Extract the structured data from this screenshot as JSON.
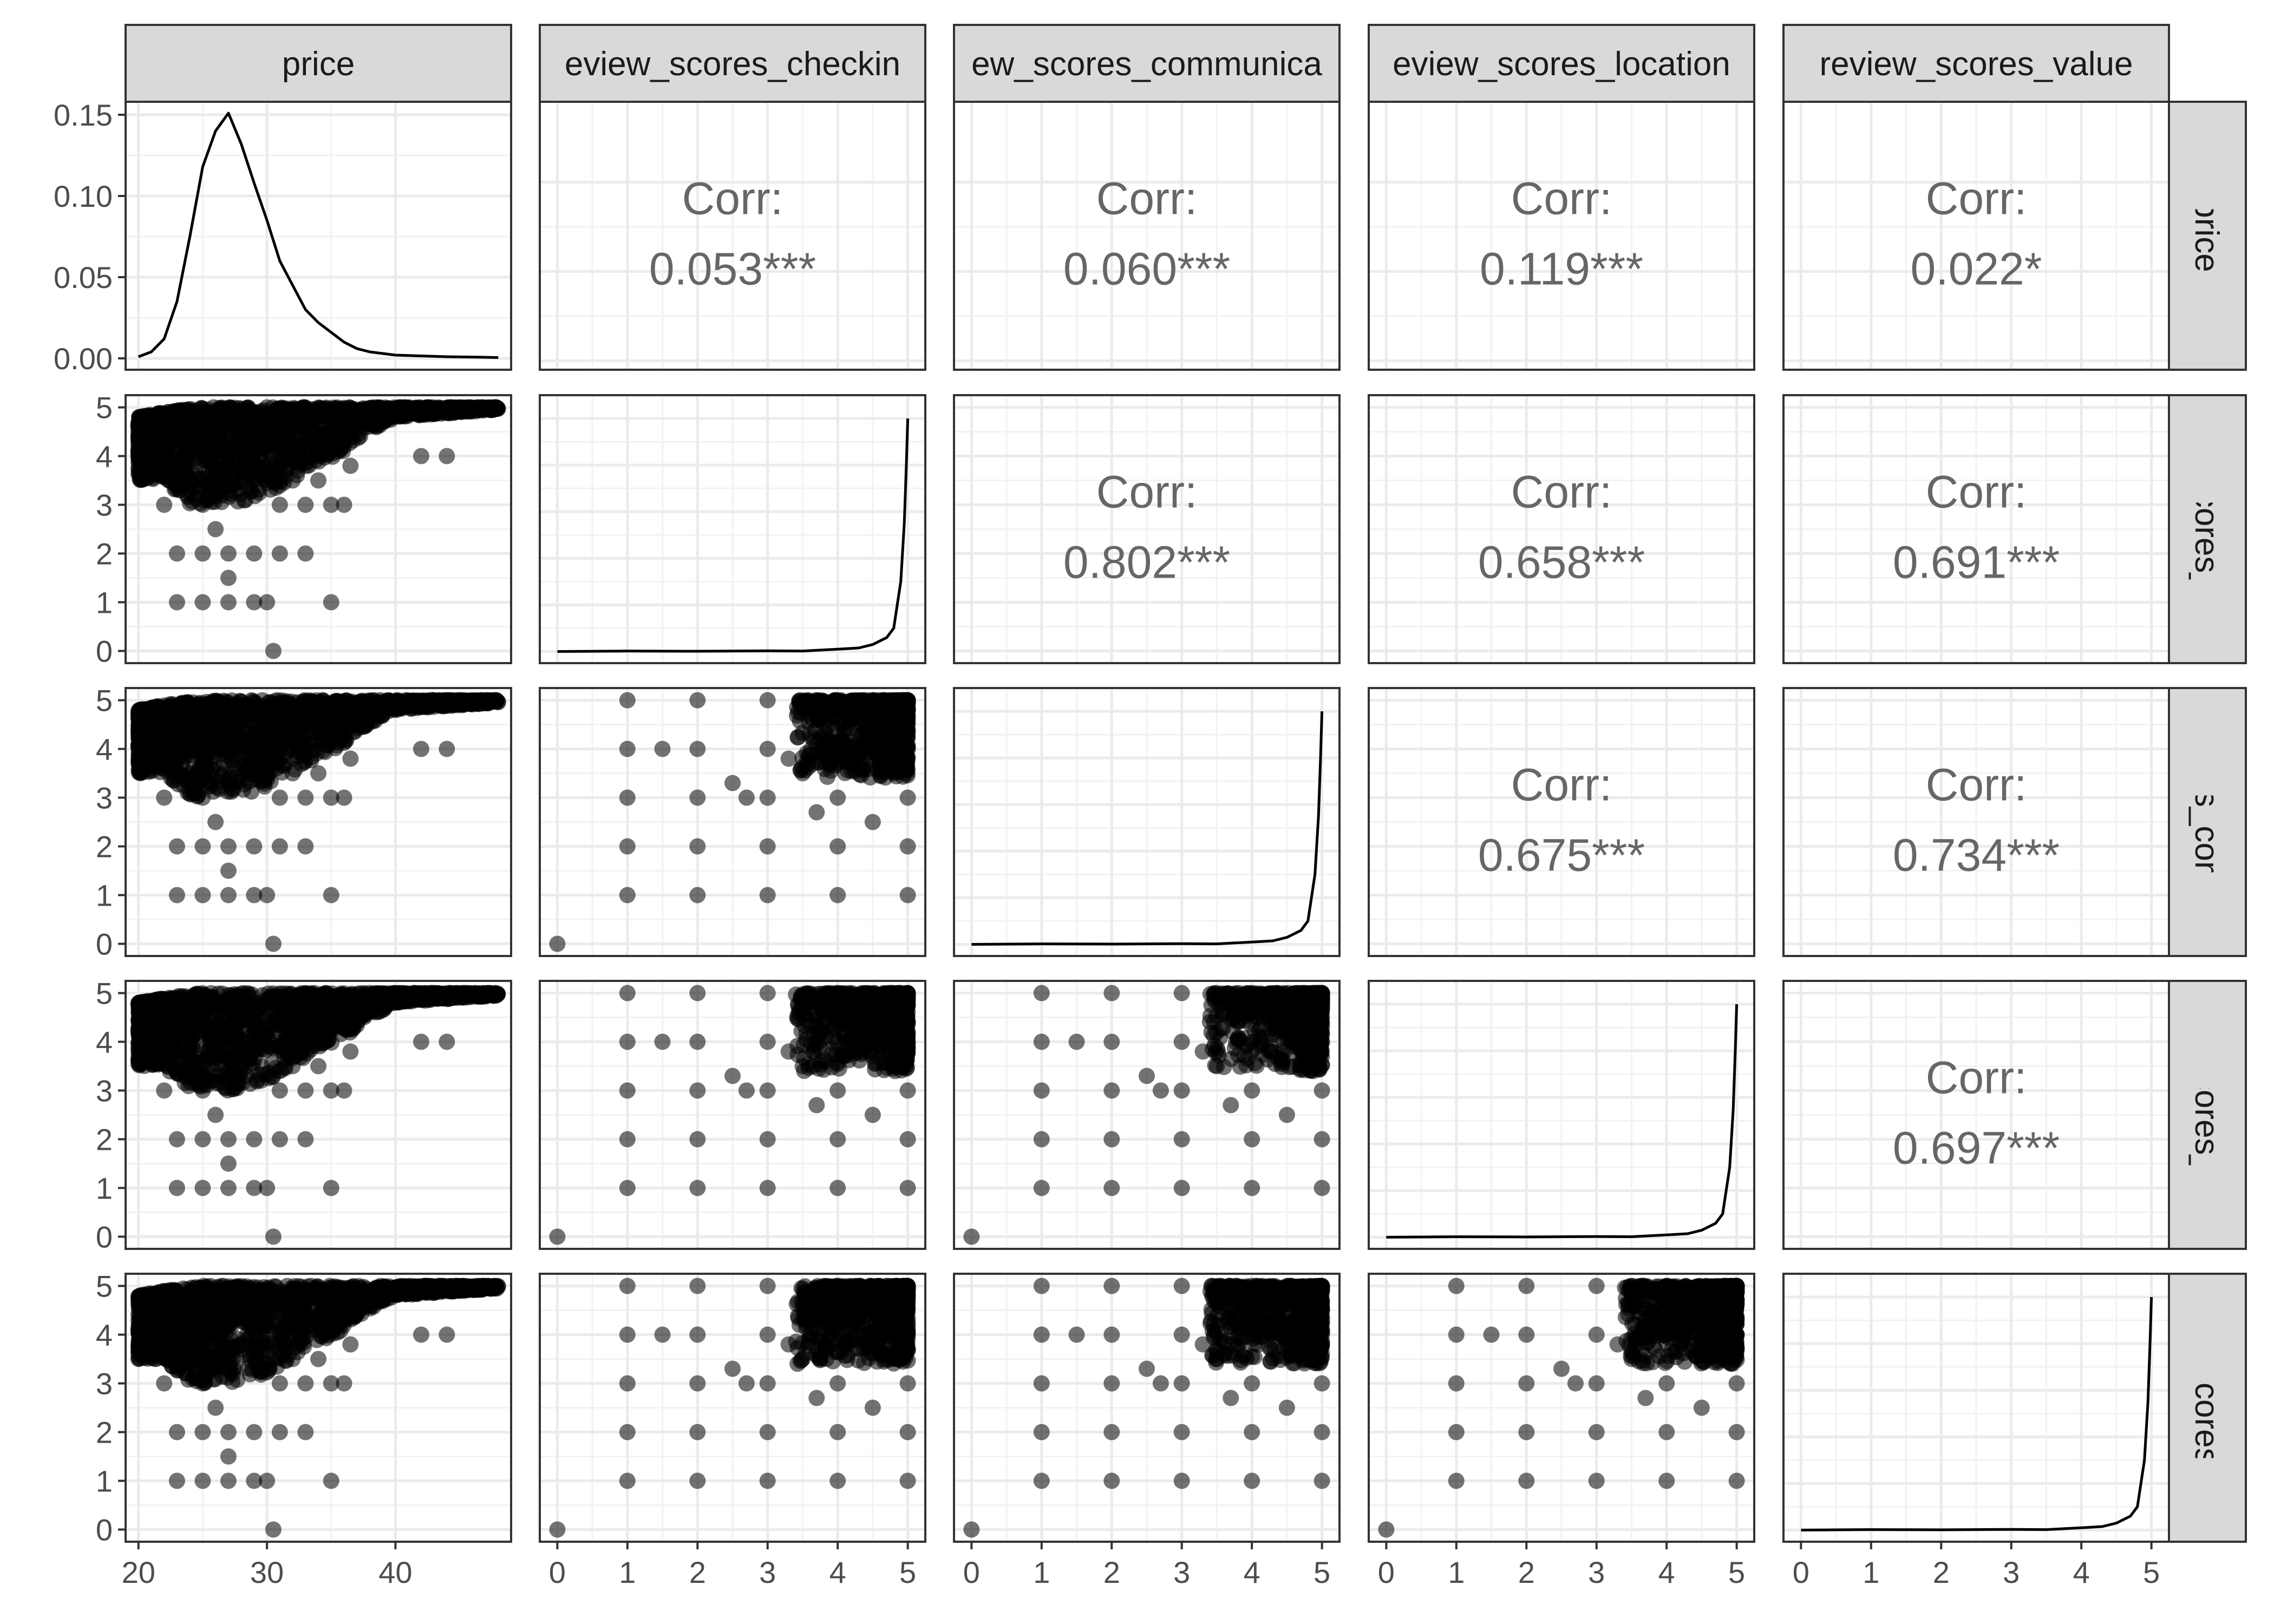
{
  "chart_data": {
    "type": "scatter",
    "title": "",
    "variables": [
      "price",
      "review_scores_checkin",
      "review_scores_communication",
      "review_scores_location",
      "review_scores_value"
    ],
    "column_strip_labels": [
      "price",
      "eview_scores_checkin",
      "ew_scores_communica",
      "eview_scores_location",
      "review_scores_value"
    ],
    "row_strip_labels": [
      "price",
      "ew_scores_che",
      "scores_commu",
      "ew_scores_loca",
      "iew_scores_va"
    ],
    "axes": {
      "price": {
        "range": [
          19,
          49
        ],
        "ticks": [
          20,
          30,
          40
        ]
      },
      "score": {
        "range": [
          -0.25,
          5.25
        ],
        "ticks": [
          0,
          1,
          2,
          3,
          4,
          5
        ]
      }
    },
    "density_axis": {
      "range": [
        -0.007,
        0.158
      ],
      "ticks": [
        "0.00",
        "0.05",
        "0.10",
        "0.15"
      ]
    },
    "correlations": [
      {
        "row": 0,
        "col": 1,
        "label": "Corr:",
        "value": "0.053***"
      },
      {
        "row": 0,
        "col": 2,
        "label": "Corr:",
        "value": "0.060***"
      },
      {
        "row": 0,
        "col": 3,
        "label": "Corr:",
        "value": "0.119***"
      },
      {
        "row": 0,
        "col": 4,
        "label": "Corr:",
        "value": "0.022*"
      },
      {
        "row": 1,
        "col": 2,
        "label": "Corr:",
        "value": "0.802***"
      },
      {
        "row": 1,
        "col": 3,
        "label": "Corr:",
        "value": "0.658***"
      },
      {
        "row": 1,
        "col": 4,
        "label": "Corr:",
        "value": "0.691***"
      },
      {
        "row": 2,
        "col": 3,
        "label": "Corr:",
        "value": "0.675***"
      },
      {
        "row": 2,
        "col": 4,
        "label": "Corr:",
        "value": "0.734***"
      },
      {
        "row": 3,
        "col": 4,
        "label": "Corr:",
        "value": "0.697***"
      }
    ],
    "price_density": {
      "x": [
        20,
        21,
        22,
        23,
        24,
        25,
        26,
        27,
        28,
        29,
        30,
        31,
        32,
        33,
        34,
        35,
        36,
        37,
        38,
        39,
        40,
        42,
        44,
        46,
        48
      ],
      "y": [
        0.001,
        0.004,
        0.012,
        0.035,
        0.075,
        0.118,
        0.14,
        0.151,
        0.132,
        0.108,
        0.085,
        0.06,
        0.045,
        0.03,
        0.022,
        0.016,
        0.01,
        0.006,
        0.004,
        0.003,
        0.002,
        0.0015,
        0.001,
        0.0008,
        0.0005
      ]
    },
    "score_density": {
      "x": [
        0,
        1,
        2,
        3,
        3.5,
        4,
        4.3,
        4.5,
        4.7,
        4.8,
        4.9,
        4.95,
        4.98,
        5.0
      ],
      "y": [
        0.0,
        0.002,
        0.001,
        0.003,
        0.002,
        0.01,
        0.015,
        0.03,
        0.06,
        0.1,
        0.3,
        0.55,
        0.8,
        1.0
      ]
    },
    "price_score_bounds": {
      "price_range": [
        20,
        48
      ],
      "upper_envelope": [
        [
          20,
          4.8
        ],
        [
          22,
          4.9
        ],
        [
          25,
          5.0
        ],
        [
          48,
          5.0
        ]
      ],
      "lower_envelope": [
        [
          22,
          3.5
        ],
        [
          24,
          3.0
        ],
        [
          27,
          3.0
        ],
        [
          30,
          3.2
        ],
        [
          33,
          3.7
        ],
        [
          36,
          4.1
        ],
        [
          38,
          4.5
        ],
        [
          40,
          4.8
        ],
        [
          48,
          4.95
        ]
      ]
    },
    "price_score_outliers": [
      [
        22,
        3
      ],
      [
        25,
        3
      ],
      [
        31,
        3
      ],
      [
        33,
        3
      ],
      [
        35,
        3
      ],
      [
        36,
        3
      ],
      [
        23,
        2
      ],
      [
        25,
        2
      ],
      [
        27,
        2
      ],
      [
        29,
        2
      ],
      [
        31,
        2
      ],
      [
        33,
        2
      ],
      [
        27,
        1.5
      ],
      [
        23,
        1
      ],
      [
        25,
        1
      ],
      [
        27,
        1
      ],
      [
        29,
        1
      ],
      [
        30,
        1
      ],
      [
        35,
        1
      ],
      [
        30.5,
        0
      ],
      [
        42,
        4
      ],
      [
        44,
        4
      ],
      [
        34,
        3.5
      ],
      [
        26,
        2.5
      ],
      [
        28,
        3.7
      ],
      [
        32,
        3.5
      ],
      [
        36.5,
        3.8
      ]
    ],
    "score_score_points": [
      [
        5,
        5
      ],
      [
        4.8,
        4.8
      ],
      [
        4.5,
        4.5
      ],
      [
        4.2,
        4.6
      ],
      [
        4.7,
        4.3
      ],
      [
        4.4,
        4.9
      ],
      [
        4.9,
        4.2
      ],
      [
        4.1,
        4.1
      ],
      [
        3.8,
        4.4
      ],
      [
        4.6,
        3.9
      ],
      [
        4,
        5
      ],
      [
        4,
        4
      ],
      [
        4,
        3
      ],
      [
        3,
        5
      ],
      [
        3,
        4
      ],
      [
        3,
        3
      ],
      [
        3,
        2
      ],
      [
        3,
        1
      ],
      [
        2,
        5
      ],
      [
        2,
        4
      ],
      [
        2,
        3
      ],
      [
        2,
        2
      ],
      [
        2,
        1
      ],
      [
        1,
        5
      ],
      [
        1,
        4
      ],
      [
        1,
        3
      ],
      [
        1,
        2
      ],
      [
        1,
        1
      ],
      [
        5,
        4
      ],
      [
        5,
        3
      ],
      [
        5,
        2
      ],
      [
        5,
        1
      ],
      [
        4,
        1
      ],
      [
        4,
        2
      ],
      [
        3.5,
        3.5
      ],
      [
        3.3,
        3.8
      ],
      [
        2.5,
        3.3
      ],
      [
        1.5,
        4
      ],
      [
        0,
        0
      ],
      [
        4.5,
        2.5
      ],
      [
        4.8,
        3.5
      ],
      [
        3.7,
        2.7
      ],
      [
        2.7,
        3
      ]
    ]
  }
}
